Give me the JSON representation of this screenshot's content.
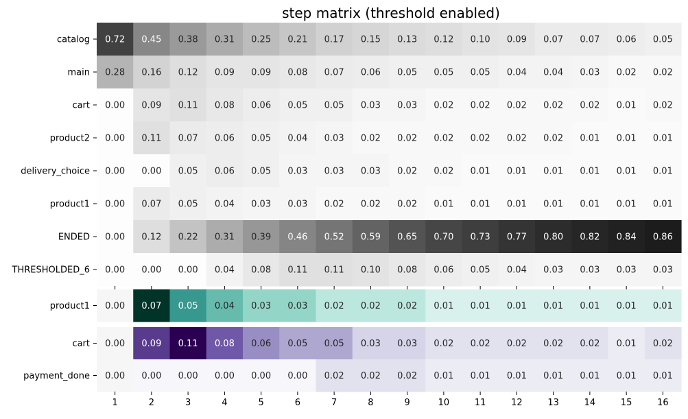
{
  "chart_data": {
    "type": "heatmap",
    "title": "step matrix (threshold enabled)",
    "xlabel": "",
    "ylabel": "",
    "columns": [
      "1",
      "2",
      "3",
      "4",
      "5",
      "6",
      "7",
      "8",
      "9",
      "10",
      "11",
      "12",
      "13",
      "14",
      "15",
      "16"
    ],
    "colorbar": false,
    "panels": [
      {
        "colormap": "greys",
        "vmin": 0,
        "vmax": 0.86,
        "rows": [
          {
            "label": "catalog",
            "values": [
              0.72,
              0.45,
              0.38,
              0.31,
              0.25,
              0.21,
              0.17,
              0.15,
              0.13,
              0.12,
              0.1,
              0.09,
              0.07,
              0.07,
              0.06,
              0.05
            ]
          },
          {
            "label": "main",
            "values": [
              0.28,
              0.16,
              0.12,
              0.09,
              0.09,
              0.08,
              0.07,
              0.06,
              0.05,
              0.05,
              0.05,
              0.04,
              0.04,
              0.03,
              0.02,
              0.02
            ]
          },
          {
            "label": "cart",
            "values": [
              0.0,
              0.09,
              0.11,
              0.08,
              0.06,
              0.05,
              0.05,
              0.03,
              0.03,
              0.02,
              0.02,
              0.02,
              0.02,
              0.02,
              0.01,
              0.02
            ]
          },
          {
            "label": "product2",
            "values": [
              0.0,
              0.11,
              0.07,
              0.06,
              0.05,
              0.04,
              0.03,
              0.02,
              0.02,
              0.02,
              0.02,
              0.02,
              0.02,
              0.01,
              0.01,
              0.01
            ]
          },
          {
            "label": "delivery_choice",
            "values": [
              0.0,
              0.0,
              0.05,
              0.06,
              0.05,
              0.03,
              0.03,
              0.03,
              0.02,
              0.02,
              0.01,
              0.01,
              0.01,
              0.01,
              0.01,
              0.01
            ]
          },
          {
            "label": "product1",
            "values": [
              0.0,
              0.07,
              0.05,
              0.04,
              0.03,
              0.03,
              0.02,
              0.02,
              0.02,
              0.01,
              0.01,
              0.01,
              0.01,
              0.01,
              0.01,
              0.01
            ]
          },
          {
            "label": "ENDED",
            "values": [
              0.0,
              0.12,
              0.22,
              0.31,
              0.39,
              0.46,
              0.52,
              0.59,
              0.65,
              0.7,
              0.73,
              0.77,
              0.8,
              0.82,
              0.84,
              0.86
            ]
          },
          {
            "label": "THRESHOLDED_6",
            "values": [
              0.0,
              0.0,
              0.0,
              0.04,
              0.08,
              0.11,
              0.11,
              0.1,
              0.08,
              0.06,
              0.05,
              0.04,
              0.03,
              0.03,
              0.03,
              0.03
            ]
          }
        ]
      },
      {
        "colormap": "teal",
        "vmin": 0,
        "vmax": 0.07,
        "rows": [
          {
            "label": "product1",
            "values": [
              0.0,
              0.07,
              0.05,
              0.04,
              0.03,
              0.03,
              0.02,
              0.02,
              0.02,
              0.01,
              0.01,
              0.01,
              0.01,
              0.01,
              0.01,
              0.01
            ]
          }
        ]
      },
      {
        "colormap": "purple",
        "vmin": 0,
        "vmax": 0.11,
        "rows": [
          {
            "label": "cart",
            "values": [
              0.0,
              0.09,
              0.11,
              0.08,
              0.06,
              0.05,
              0.05,
              0.03,
              0.03,
              0.02,
              0.02,
              0.02,
              0.02,
              0.02,
              0.01,
              0.02
            ]
          },
          {
            "label": "payment_done",
            "values": [
              0.0,
              0.0,
              0.0,
              0.0,
              0.0,
              0.0,
              0.02,
              0.02,
              0.02,
              0.01,
              0.01,
              0.01,
              0.01,
              0.01,
              0.01,
              0.01
            ]
          }
        ]
      }
    ],
    "colors": {
      "first_column": "#f6f6f6",
      "greys": [
        "#fdfdfd",
        "#1c1c1c"
      ],
      "teal": [
        "#f0f8f6",
        "#c6ebe5",
        "#7ecdbc",
        "#2a8f88",
        "#013428"
      ],
      "purple": [
        "#f7f6fb",
        "#dadaeb",
        "#a49cca",
        "#6a51a3",
        "#2b0052"
      ]
    }
  }
}
